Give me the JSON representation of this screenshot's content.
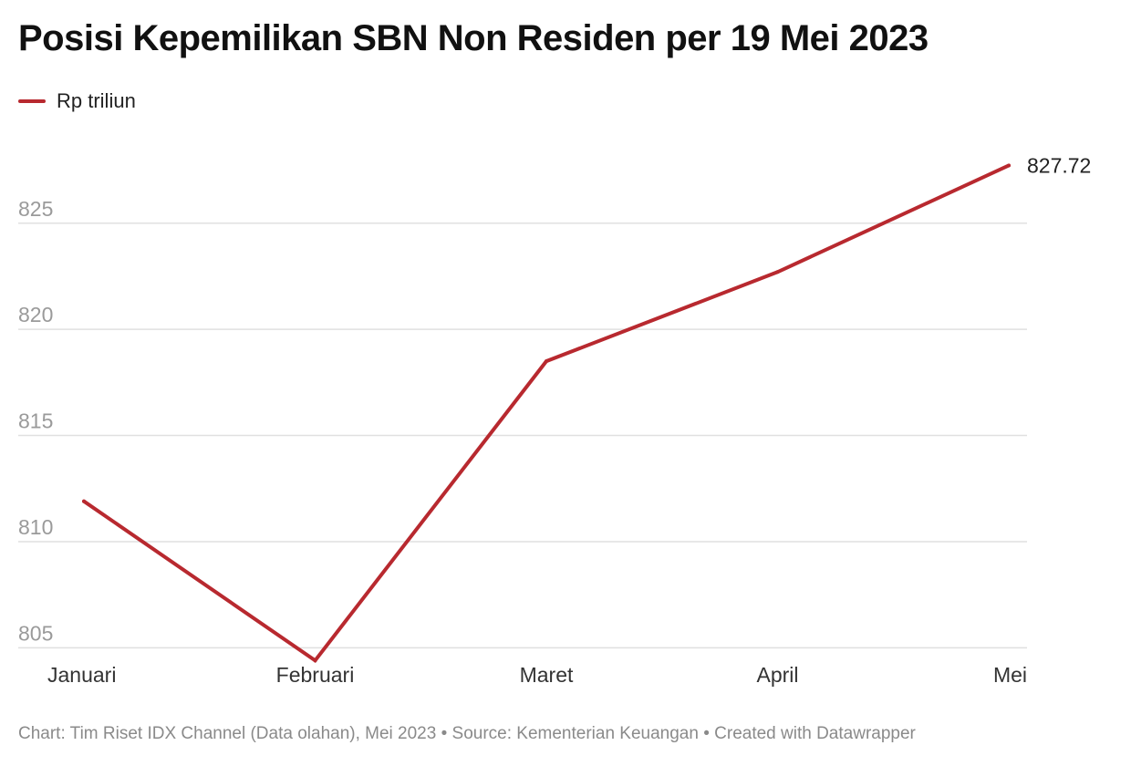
{
  "title": "Posisi Kepemilikan SBN Non Residen per 19 Mei 2023",
  "legend_label": "Rp triliun",
  "footer": "Chart: Tim Riset IDX Channel (Data olahan), Mei 2023 • Source: Kementerian Keuangan • Created with Datawrapper",
  "colors": {
    "line": "#b8292f",
    "grid": "#e0e0e0",
    "axis_text": "#9a9a9a",
    "x_text": "#333333"
  },
  "chart_data": {
    "type": "line",
    "categories": [
      "Januari",
      "Februari",
      "Maret",
      "April",
      "Mei"
    ],
    "series": [
      {
        "name": "Rp triliun",
        "values": [
          811.9,
          804.4,
          818.5,
          822.7,
          827.72
        ]
      }
    ],
    "end_label": "827.72",
    "ylim": [
      804.5,
      829.5
    ],
    "yticks": [
      "805",
      "810",
      "815",
      "820",
      "825"
    ],
    "grid": true,
    "legend_position": "top-left"
  }
}
